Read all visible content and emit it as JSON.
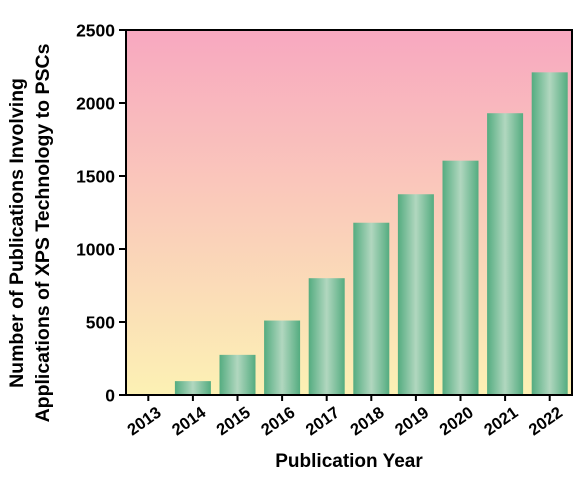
{
  "colors": {
    "bg_top": "#f8a8c0",
    "bg_bottom": "#fcf1b4",
    "bar_edge": "#54ac80",
    "bar_center": "#b1d7bf",
    "axis": "#000000"
  },
  "chart_data": {
    "type": "bar",
    "title": "",
    "xlabel": "Publication Year",
    "ylabel_lines": [
      "Number of Publications Involving",
      "Applications of XPS Technology to PSCs"
    ],
    "categories": [
      "2013",
      "2014",
      "2015",
      "2016",
      "2017",
      "2018",
      "2019",
      "2020",
      "2021",
      "2022"
    ],
    "values": [
      0,
      95,
      275,
      510,
      800,
      1180,
      1375,
      1605,
      1930,
      2210
    ],
    "ylim": [
      0,
      2500
    ],
    "yticks": [
      0,
      500,
      1000,
      1500,
      2000,
      2500
    ],
    "ytick_labels": [
      "0",
      "500",
      "1000",
      "1500",
      "2000",
      "2500"
    ],
    "grid": false,
    "legend": "none"
  }
}
